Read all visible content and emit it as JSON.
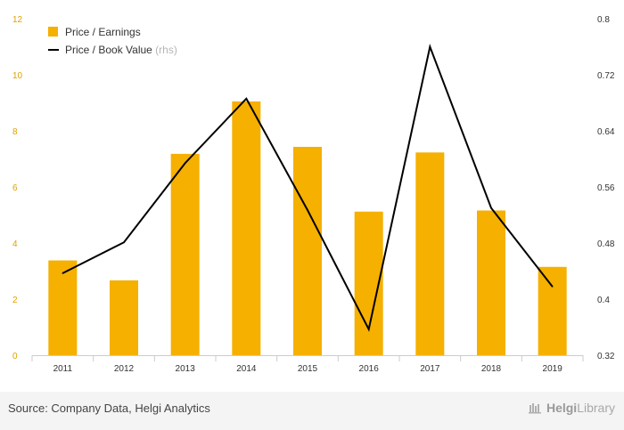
{
  "chart_data": {
    "type": "bar+line",
    "categories": [
      "2011",
      "2012",
      "2013",
      "2014",
      "2015",
      "2016",
      "2017",
      "2018",
      "2019"
    ],
    "series": [
      {
        "name": "Price / Earnings",
        "type": "bar",
        "axis": "left",
        "color": "#f5b000",
        "values": [
          3.38,
          2.67,
          7.18,
          9.05,
          7.43,
          5.12,
          7.23,
          5.16,
          3.15
        ]
      },
      {
        "name": "Price / Book Value",
        "legend_suffix": "(rhs)",
        "type": "line",
        "axis": "right",
        "color": "#000000",
        "values": [
          0.437,
          0.481,
          0.594,
          0.686,
          0.527,
          0.357,
          0.76,
          0.53,
          0.418
        ]
      }
    ],
    "left_axis": {
      "ylim": [
        0,
        12
      ],
      "ticks": [
        "0",
        "2",
        "4",
        "6",
        "8",
        "10",
        "12"
      ]
    },
    "right_axis": {
      "ylim": [
        0.32,
        0.8
      ],
      "ticks": [
        "0.32",
        "0.4",
        "0.48",
        "0.56",
        "0.64",
        "0.72",
        "0.8"
      ]
    },
    "grid": false,
    "legend": "top-left"
  },
  "footer": {
    "source": "Source: Company Data, Helgi Analytics",
    "brand_part1": "Helgi",
    "brand_part2": "Library"
  }
}
